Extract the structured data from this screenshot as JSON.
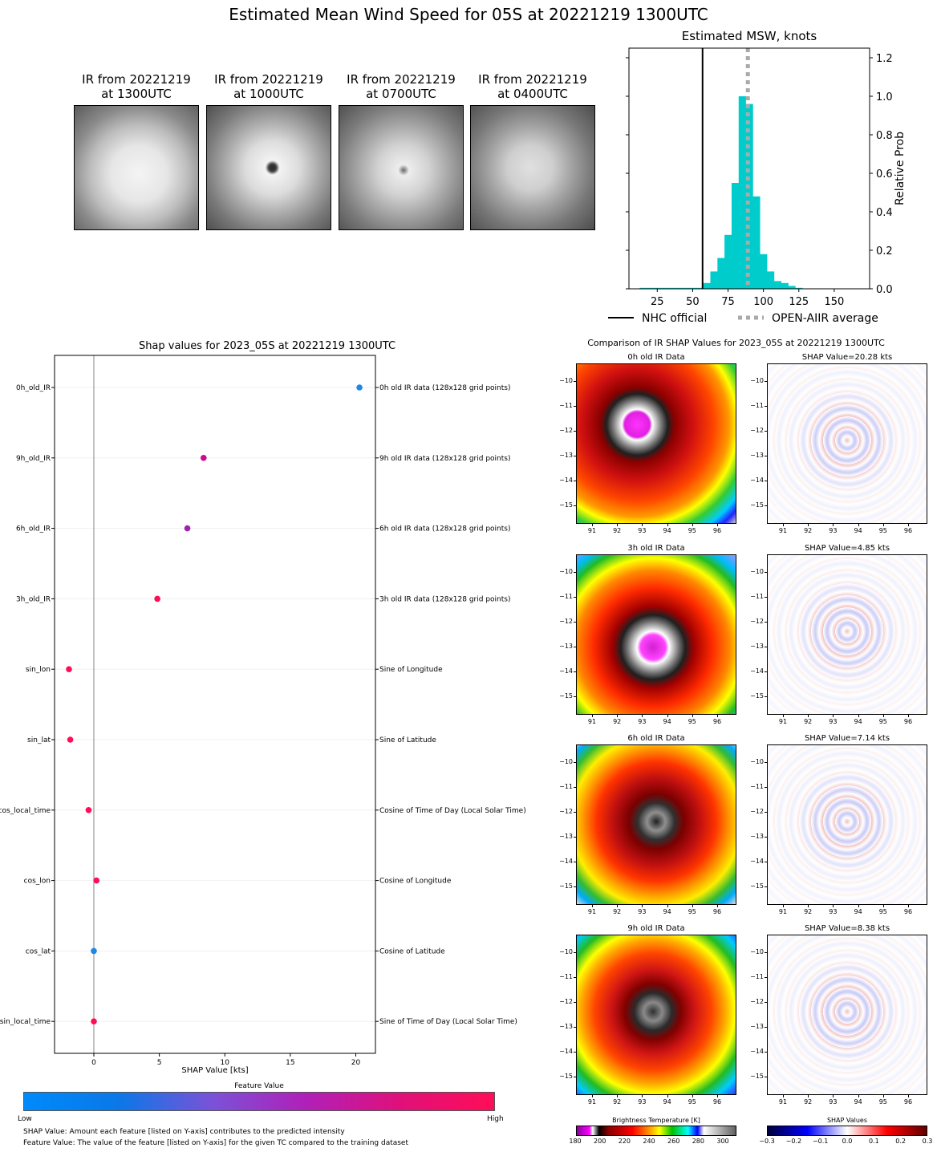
{
  "title": "Estimated Mean Wind Speed for 05S at 20221219 1300UTC",
  "thumbnails": [
    {
      "line1": "IR from 20221219",
      "line2": "at 1300UTC"
    },
    {
      "line1": "IR from 20221219",
      "line2": "at 1000UTC"
    },
    {
      "line1": "IR from 20221219",
      "line2": "at 0700UTC"
    },
    {
      "line1": "IR from 20221219",
      "line2": "at 0400UTC"
    }
  ],
  "chart_data": [
    {
      "type": "bar",
      "title": "Estimated MSW, knots",
      "ylabel": "Relative Prob",
      "xlim": [
        5,
        175
      ],
      "ylim": [
        0,
        1.25
      ],
      "xticks": [
        25,
        50,
        75,
        100,
        125,
        150
      ],
      "yticks": [
        "0.0",
        "0.2",
        "0.4",
        "0.6",
        "0.8",
        "1.0",
        "1.2"
      ],
      "bins": [
        [
          15,
          0.005
        ],
        [
          20,
          0.005
        ],
        [
          25,
          0.005
        ],
        [
          30,
          0.005
        ],
        [
          35,
          0.005
        ],
        [
          40,
          0.005
        ],
        [
          45,
          0.005
        ],
        [
          50,
          0.005
        ],
        [
          55,
          0.005
        ],
        [
          60,
          0.03
        ],
        [
          65,
          0.09
        ],
        [
          70,
          0.16
        ],
        [
          75,
          0.28
        ],
        [
          80,
          0.55
        ],
        [
          85,
          1.0
        ],
        [
          90,
          0.96
        ],
        [
          95,
          0.48
        ],
        [
          100,
          0.18
        ],
        [
          105,
          0.09
        ],
        [
          110,
          0.04
        ],
        [
          115,
          0.03
        ],
        [
          120,
          0.015
        ],
        [
          125,
          0.005
        ],
        [
          130,
          0.002
        ],
        [
          135,
          0.002
        ],
        [
          140,
          0.002
        ],
        [
          145,
          0.002
        ],
        [
          150,
          0.002
        ],
        [
          155,
          0.002
        ],
        [
          160,
          0.002
        ],
        [
          165,
          0.002
        ]
      ],
      "nhc_official": 57,
      "open_aiir_average": 89,
      "legend": [
        "NHC official",
        "OPEN-AIIR average"
      ],
      "bar_color": "#00cccc"
    },
    {
      "type": "scatter",
      "title": "Shap values for 2023_05S at 20221219 1300UTC",
      "xlabel": "SHAP Value [kts]",
      "xlim": [
        -3,
        21.5
      ],
      "xticks": [
        0,
        5,
        10,
        15,
        20
      ],
      "features": [
        {
          "name": "0h_old_IR",
          "desc": "0h old IR data (128x128 grid points)",
          "shap": 20.28,
          "color": "#1e88e5"
        },
        {
          "name": "9h_old_IR",
          "desc": "9h old IR data (128x128 grid points)",
          "shap": 8.38,
          "color": "#cc0a8f"
        },
        {
          "name": "6h_old_IR",
          "desc": "6h old IR data (128x128 grid points)",
          "shap": 7.14,
          "color": "#a020b0"
        },
        {
          "name": "3h_old_IR",
          "desc": "3h old IR data (128x128 grid points)",
          "shap": 4.85,
          "color": "#ff0d57"
        },
        {
          "name": "sin_lon",
          "desc": "Sine of Longitude",
          "shap": -1.9,
          "color": "#ff0d57"
        },
        {
          "name": "sin_lat",
          "desc": "Sine of Latitude",
          "shap": -1.8,
          "color": "#ff0d57"
        },
        {
          "name": "cos_local_time",
          "desc": "Cosine of Time of Day (Local Solar Time)",
          "shap": -0.4,
          "color": "#ff0d57"
        },
        {
          "name": "cos_lon",
          "desc": "Cosine of Longitude",
          "shap": 0.2,
          "color": "#ff0d57"
        },
        {
          "name": "cos_lat",
          "desc": "Cosine of Latitude",
          "shap": 0.0,
          "color": "#1e88e5"
        },
        {
          "name": "sin_local_time",
          "desc": "Sine of Time of Day (Local Solar Time)",
          "shap": 0.0,
          "color": "#ff0d57"
        }
      ]
    }
  ],
  "feature_colorbar": {
    "title": "Feature Value",
    "low": "Low",
    "high": "High"
  },
  "notes": [
    "SHAP Value: Amount each feature [listed on Y-axis] contributes to the predicted intensity",
    "Feature Value: The value of the feature [listed on Y-axis] for the given TC compared to the training dataset"
  ],
  "comparison": {
    "title": "Comparison of IR SHAP Values for 2023_05S at 20221219 1300UTC",
    "xticks": [
      "91",
      "92",
      "93",
      "94",
      "95",
      "96"
    ],
    "yticks": [
      "−10",
      "−11",
      "−12",
      "−13",
      "−14",
      "−15"
    ],
    "rows": [
      {
        "ir_title": "0h old IR Data",
        "shap_title": "SHAP Value=20.28 kts"
      },
      {
        "ir_title": "3h old IR Data",
        "shap_title": "SHAP Value=4.85 kts"
      },
      {
        "ir_title": "6h old IR Data",
        "shap_title": "SHAP Value=7.14 kts"
      },
      {
        "ir_title": "9h old IR Data",
        "shap_title": "SHAP Value=8.38 kts"
      }
    ],
    "bt_colorbar": {
      "label": "Brightness Temperature [K]",
      "ticks": [
        "180",
        "200",
        "220",
        "240",
        "260",
        "280",
        "300"
      ]
    },
    "shap_colorbar": {
      "label": "SHAP Values",
      "ticks": [
        "−0.3",
        "−0.2",
        "−0.1",
        "0.0",
        "0.1",
        "0.2",
        "0.3"
      ]
    }
  }
}
